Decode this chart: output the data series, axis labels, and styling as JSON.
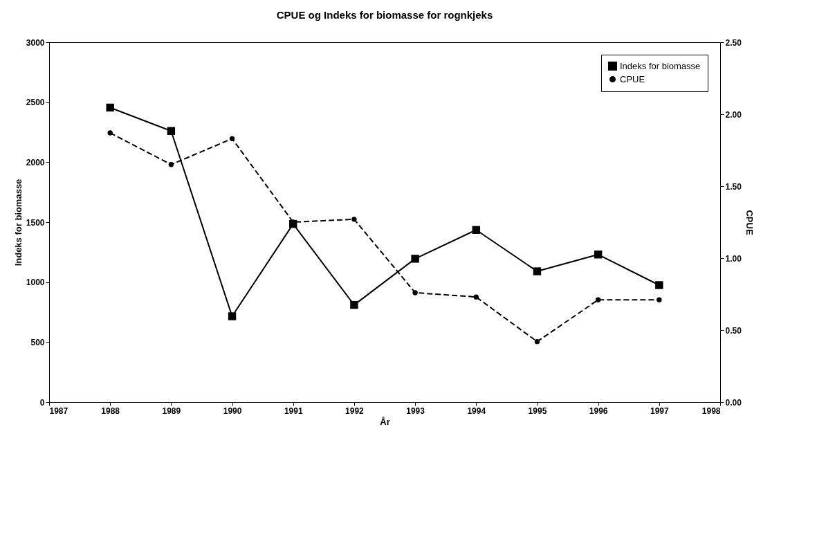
{
  "chart_data": {
    "type": "line",
    "title": "CPUE og Indeks for biomasse for rognkjeks",
    "xlabel": "År",
    "ylabel": "Indeks for biomasse",
    "y2label": "CPUE",
    "x": [
      1988,
      1989,
      1990,
      1991,
      1992,
      1993,
      1994,
      1995,
      1996,
      1997
    ],
    "series": [
      {
        "name": "Indeks for biomasse",
        "color": "#000000",
        "marker": "square",
        "line_style": "solid",
        "values": [
          2455,
          2260,
          715,
          1485,
          810,
          1195,
          1435,
          1090,
          1230,
          975
        ]
      },
      {
        "name": "CPUE",
        "color": "#000000",
        "marker": "circle",
        "line_style": "dashed",
        "axis": "y2",
        "values": [
          1.87,
          1.65,
          1.83,
          1.25,
          1.27,
          0.76,
          0.73,
          0.42,
          0.71,
          0.71
        ]
      }
    ],
    "xlim": [
      1987,
      1998
    ],
    "xticks": [
      1987,
      1988,
      1989,
      1990,
      1991,
      1992,
      1993,
      1994,
      1995,
      1996,
      1997,
      1998
    ],
    "ylim": [
      0,
      3000
    ],
    "yticks": [
      0,
      500,
      1000,
      1500,
      2000,
      2500,
      3000
    ],
    "y2lim": [
      0,
      2.5
    ],
    "y2ticks": [
      {
        "value": 0,
        "label": "0.00"
      },
      {
        "value": 0.5,
        "label": "0.50"
      },
      {
        "value": 1,
        "label": "1.00"
      },
      {
        "value": 1.5,
        "label": "1.50"
      },
      {
        "value": 2,
        "label": "2.00"
      },
      {
        "value": 2.5,
        "label": "2.50"
      }
    ],
    "grid": false,
    "legend": "top right"
  }
}
